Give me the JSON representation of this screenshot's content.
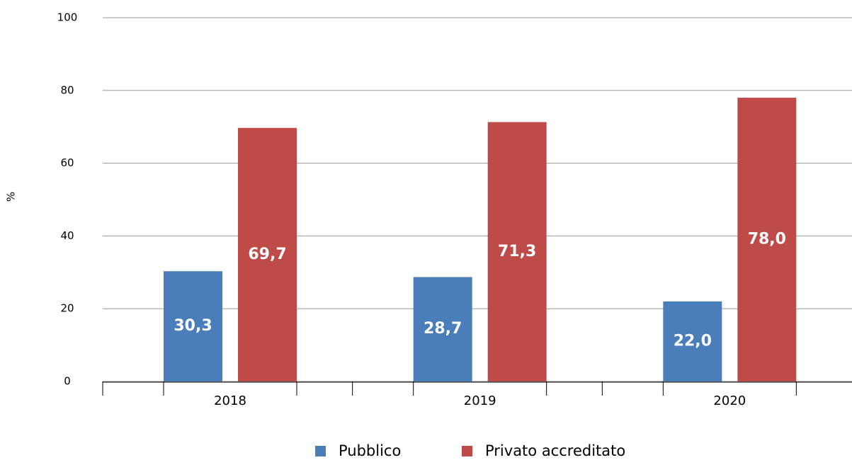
{
  "chart_data": {
    "type": "bar",
    "ylabel": "%",
    "categories": [
      "2018",
      "2019",
      "2020"
    ],
    "series": [
      {
        "name": "Pubblico",
        "color": "#4a7ebb",
        "values": [
          30.3,
          28.7,
          22.0
        ],
        "value_labels": [
          "30,3",
          "28,7",
          "22,0"
        ]
      },
      {
        "name": "Privato accreditato",
        "color": "#be4b48",
        "values": [
          69.7,
          71.3,
          78.0
        ],
        "value_labels": [
          "69,7",
          "71,3",
          "78,0"
        ]
      }
    ],
    "ylim": [
      0,
      100
    ],
    "yticks": [
      0,
      20,
      40,
      60,
      80,
      100
    ],
    "grid": true
  }
}
